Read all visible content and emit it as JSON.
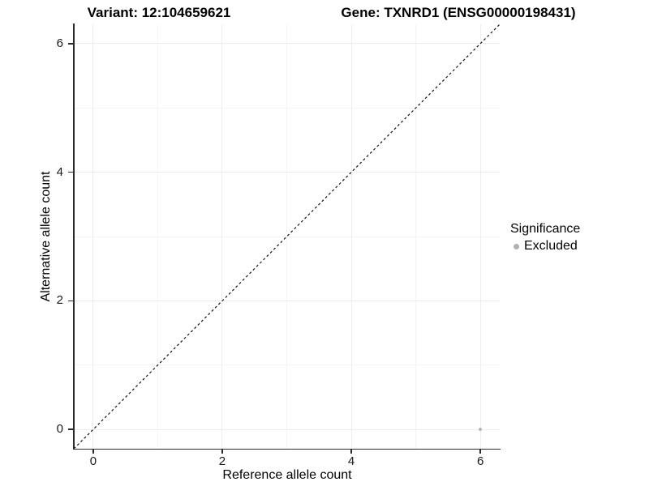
{
  "chart_data": {
    "type": "scatter",
    "titles": {
      "variant": "Variant: 12:104659621",
      "gene": "Gene: TXNRD1 (ENSG00000198431)"
    },
    "xlabel": "Reference allele count",
    "ylabel": "Alternative allele count",
    "xlim": [
      -0.3,
      6.3
    ],
    "ylim": [
      -0.3,
      6.3
    ],
    "x_ticks": [
      0,
      2,
      4,
      6
    ],
    "y_ticks": [
      0,
      2,
      4,
      6
    ],
    "x_minor_gridlines": [
      1,
      3,
      5
    ],
    "y_minor_gridlines": [
      1,
      3,
      5
    ],
    "grid": true,
    "reference_line": {
      "slope": 1,
      "intercept": 0,
      "style": "dashed",
      "color": "#111111"
    },
    "series": [
      {
        "name": "Excluded",
        "color": "#b5b5b5",
        "points": [
          {
            "x": 6,
            "y": 0
          }
        ]
      }
    ],
    "legend": {
      "position": "right",
      "title": "Significance",
      "entries": [
        {
          "label": "Excluded",
          "color": "#b0b0b0",
          "marker": "circle"
        }
      ]
    },
    "colors": {
      "background": "#ffffff",
      "major_grid": "#ededed",
      "minor_grid": "#f4f4f4",
      "axis_line": "#2b2b2b",
      "text": "#000000"
    }
  }
}
